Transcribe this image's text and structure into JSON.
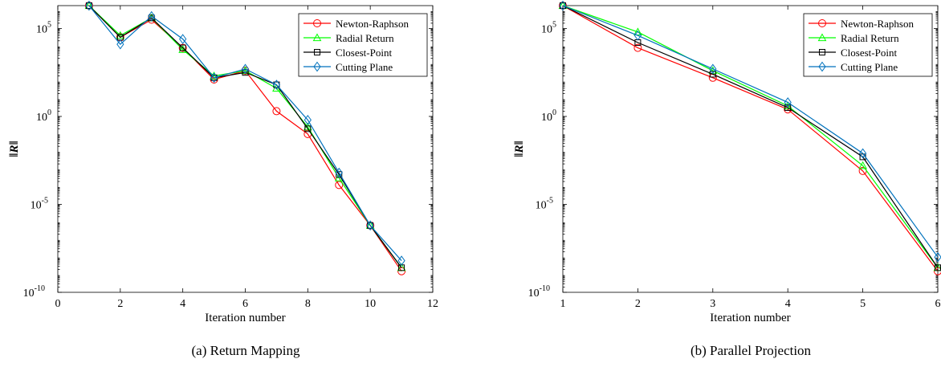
{
  "colors": {
    "newton": "#ff0000",
    "radial": "#00ff00",
    "closest": "#000000",
    "cutting": "#0072bd"
  },
  "chart_data": [
    {
      "type": "line",
      "panel_label": "(a) Return Mapping",
      "xlabel": "Iteration number",
      "ylabel": "‖R‖",
      "y_scale": "log",
      "xlim": [
        0,
        12
      ],
      "ylim_exp": [
        -10,
        6.3
      ],
      "x_ticks": [
        0,
        2,
        4,
        6,
        8,
        10,
        12
      ],
      "y_ticks_exp": [
        -10,
        -5,
        0,
        5
      ],
      "y_tick_labels": [
        "10",
        "10",
        "10",
        "10"
      ],
      "y_tick_sups": [
        "-10",
        "-5",
        "0",
        "5"
      ],
      "legend_position": "top-right",
      "x": [
        1,
        2,
        3,
        4,
        5,
        6,
        7,
        8,
        9,
        10,
        11
      ],
      "series": [
        {
          "name": "Newton-Raphson",
          "marker": "circle",
          "color_key": "newton",
          "y_exp": [
            6.3,
            4.5,
            5.5,
            3.9,
            2.1,
            2.6,
            0.3,
            -1.0,
            -3.9,
            -6.2,
            -8.8
          ]
        },
        {
          "name": "Radial Return",
          "marker": "triangle",
          "color_key": "radial",
          "y_exp": [
            6.3,
            4.6,
            5.6,
            3.8,
            2.3,
            2.6,
            1.6,
            -0.6,
            -3.5,
            -6.2,
            -8.6
          ]
        },
        {
          "name": "Closest-Point",
          "marker": "square",
          "color_key": "closest",
          "y_exp": [
            6.3,
            4.5,
            5.6,
            3.9,
            2.2,
            2.5,
            1.8,
            -0.7,
            -3.3,
            -6.2,
            -8.6
          ]
        },
        {
          "name": "Cutting Plane",
          "marker": "diamond",
          "color_key": "cutting",
          "y_exp": [
            6.3,
            4.1,
            5.7,
            4.4,
            2.2,
            2.7,
            1.8,
            -0.2,
            -3.2,
            -6.2,
            -8.2
          ]
        }
      ]
    },
    {
      "type": "line",
      "panel_label": "(b) Parallel Projection",
      "xlabel": "Iteration number",
      "ylabel": "‖R‖",
      "y_scale": "log",
      "xlim": [
        1,
        6
      ],
      "ylim_exp": [
        -10,
        6.3
      ],
      "x_ticks": [
        1,
        2,
        3,
        4,
        5,
        6
      ],
      "y_ticks_exp": [
        -10,
        -5,
        0,
        5
      ],
      "y_tick_labels": [
        "10",
        "10",
        "10",
        "10"
      ],
      "y_tick_sups": [
        "-10",
        "-5",
        "0",
        "5"
      ],
      "legend_position": "top-right",
      "x": [
        1,
        2,
        3,
        4,
        5,
        6
      ],
      "series": [
        {
          "name": "Newton-Raphson",
          "marker": "circle",
          "color_key": "newton",
          "y_exp": [
            6.3,
            3.9,
            2.2,
            0.4,
            -3.1,
            -8.8
          ]
        },
        {
          "name": "Radial Return",
          "marker": "triangle",
          "color_key": "radial",
          "y_exp": [
            6.3,
            4.8,
            2.6,
            0.6,
            -2.8,
            -8.6
          ]
        },
        {
          "name": "Closest-Point",
          "marker": "square",
          "color_key": "closest",
          "y_exp": [
            6.3,
            4.2,
            2.4,
            0.5,
            -2.3,
            -8.6
          ]
        },
        {
          "name": "Cutting Plane",
          "marker": "diamond",
          "color_key": "cutting",
          "y_exp": [
            6.3,
            4.6,
            2.7,
            0.8,
            -2.1,
            -8.0
          ]
        }
      ]
    }
  ]
}
